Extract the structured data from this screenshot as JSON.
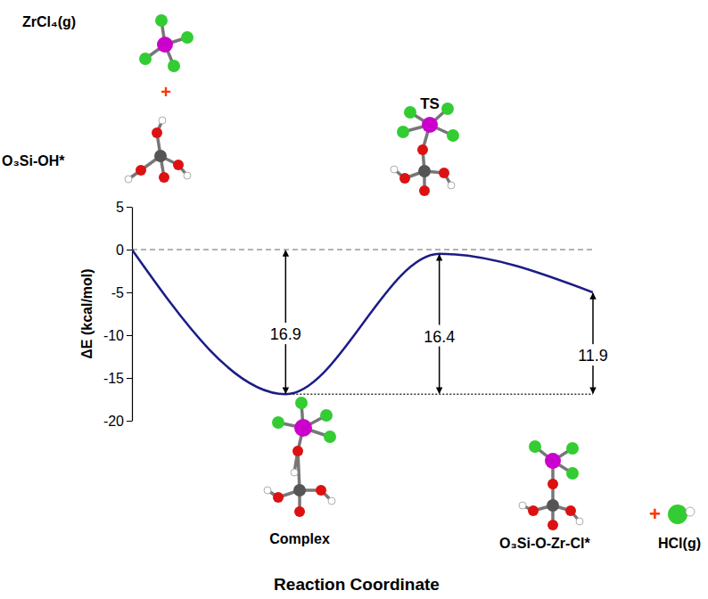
{
  "chart_data": {
    "type": "line",
    "y_label": "ΔE (kcal/mol)",
    "x_label": "Reaction Coordinate",
    "x": [
      0,
      1,
      2,
      3
    ],
    "xlim": [
      0,
      3
    ],
    "ylim": [
      -20,
      5
    ],
    "yticks": [
      -20,
      -15,
      -10,
      -5,
      0,
      5
    ],
    "tick_labels": "y",
    "series": [
      {
        "color": "#1c1c86",
        "values": [
          0,
          -16.9,
          -0.5,
          -5.0
        ]
      }
    ],
    "reference_lines": [
      {
        "y": 0,
        "x_range": [
          0,
          3
        ],
        "line_style": "dashed"
      },
      {
        "y": -16.9,
        "x_range": [
          1,
          3
        ],
        "line_style": "dotted"
      }
    ],
    "annotations": [
      {
        "text": "16.9",
        "x": 1,
        "from": -16.9,
        "to": 0
      },
      {
        "text": "16.4",
        "x": 2,
        "from": -16.9,
        "to": -0.5
      },
      {
        "text": "11.9",
        "x": 3,
        "from": -16.9,
        "to": -5.0
      }
    ],
    "labels": [
      {
        "text": "ZrCl₄(g)"
      },
      {
        "text": "+",
        "color": "#ff3300"
      },
      {
        "text": "O₃Si-OH*"
      },
      {
        "text": "TS"
      },
      {
        "text": "Complex"
      },
      {
        "text": "O₃Si-O-Zr-Cl*"
      },
      {
        "text": "+",
        "color": "#ff3300"
      },
      {
        "text": "HCl(g)"
      }
    ]
  }
}
